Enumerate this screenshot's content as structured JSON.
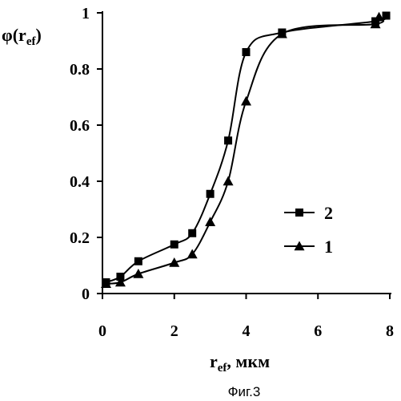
{
  "chart_data": {
    "type": "line",
    "ylabel_main": "φ(r",
    "ylabel_sub": "ef",
    "ylabel_close": ")",
    "xlabel_main": "r",
    "xlabel_sub": "ef",
    "xlabel_rest": ", мкм",
    "caption": "Фиг.3",
    "xlim": [
      0,
      8
    ],
    "ylim": [
      0,
      1
    ],
    "xticks": [
      "0",
      "2",
      "4",
      "6",
      "8"
    ],
    "xtick_values": [
      0,
      2,
      4,
      6,
      8
    ],
    "yticks": [
      "0",
      "0.2",
      "0.4",
      "0.6",
      "0.8",
      "1"
    ],
    "ytick_values": [
      0,
      0.2,
      0.4,
      0.6,
      0.8,
      1.0
    ],
    "grid": false,
    "legend_position": "center-right",
    "series": [
      {
        "name": "2",
        "marker": "square",
        "x": [
          0.1,
          0.5,
          1.0,
          2.0,
          2.5,
          3.0,
          3.5,
          4.0,
          5.0,
          7.6,
          7.9
        ],
        "y": [
          0.04,
          0.06,
          0.115,
          0.175,
          0.215,
          0.355,
          0.545,
          0.86,
          0.93,
          0.97,
          0.99
        ]
      },
      {
        "name": "1",
        "marker": "triangle",
        "x": [
          0.1,
          0.5,
          1.0,
          2.0,
          2.5,
          3.0,
          3.5,
          4.0,
          5.0,
          7.6,
          7.7
        ],
        "y": [
          0.035,
          0.04,
          0.07,
          0.11,
          0.14,
          0.255,
          0.4,
          0.685,
          0.925,
          0.96,
          0.985
        ]
      }
    ]
  }
}
